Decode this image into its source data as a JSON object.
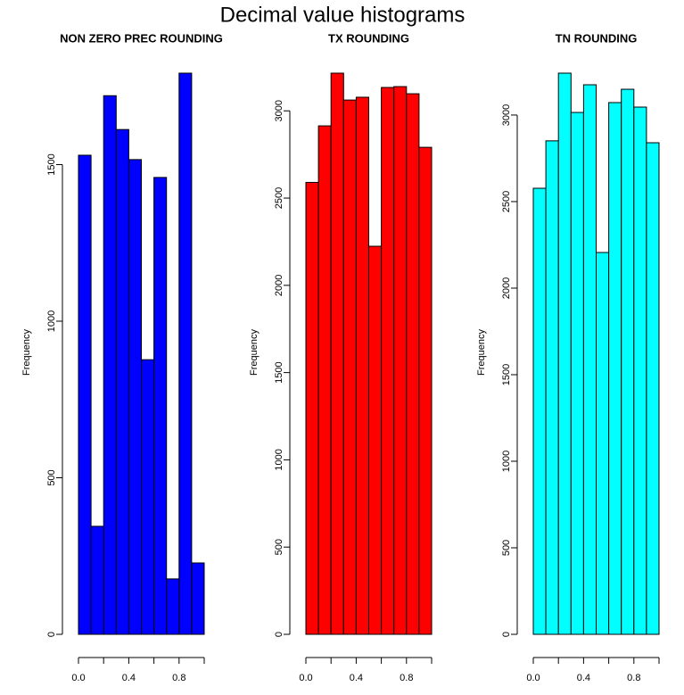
{
  "title": "Decimal value histograms",
  "chart_data": [
    {
      "type": "histogram",
      "title": "NON ZERO PREC ROUNDING",
      "ylabel": "Frequency",
      "color": "#0000ff",
      "bins": [
        0,
        0.1,
        0.2,
        0.3,
        0.4,
        0.5,
        0.6,
        0.7,
        0.8,
        0.9,
        1.0
      ],
      "values": [
        1530,
        345,
        1720,
        1612,
        1516,
        877,
        1459,
        177,
        1792,
        228
      ],
      "xlim": [
        0,
        1
      ],
      "ylim": [
        0,
        1792
      ],
      "xticks": [
        {
          "value": 0,
          "label": "0.0"
        },
        {
          "value": 0.2,
          "label": null
        },
        {
          "value": 0.4,
          "label": "0.4"
        },
        {
          "value": 0.6,
          "label": null
        },
        {
          "value": 0.8,
          "label": "0.8"
        },
        {
          "value": 1.0,
          "label": null
        }
      ],
      "yticks": [
        0,
        500,
        1000,
        1500
      ]
    },
    {
      "type": "histogram",
      "title": "TX ROUNDING",
      "ylabel": "Frequency",
      "color": "#ff0000",
      "bins": [
        0,
        0.1,
        0.2,
        0.3,
        0.4,
        0.5,
        0.6,
        0.7,
        0.8,
        0.9,
        1.0
      ],
      "values": [
        2590,
        2914,
        3216,
        3062,
        3078,
        2224,
        3134,
        3139,
        3098,
        2791
      ],
      "xlim": [
        0,
        1
      ],
      "ylim": [
        0,
        3216
      ],
      "xticks": [
        {
          "value": 0,
          "label": "0.0"
        },
        {
          "value": 0.2,
          "label": null
        },
        {
          "value": 0.4,
          "label": "0.4"
        },
        {
          "value": 0.6,
          "label": null
        },
        {
          "value": 0.8,
          "label": "0.8"
        },
        {
          "value": 1.0,
          "label": null
        }
      ],
      "yticks": [
        0,
        500,
        1000,
        1500,
        2000,
        2500,
        3000
      ]
    },
    {
      "type": "histogram",
      "title": "TN ROUNDING",
      "ylabel": "Frequency",
      "color": "#00ffff",
      "bins": [
        0,
        0.1,
        0.2,
        0.3,
        0.4,
        0.5,
        0.6,
        0.7,
        0.8,
        0.9,
        1.0
      ],
      "values": [
        2577,
        2851,
        3242,
        3015,
        3175,
        2206,
        3072,
        3149,
        3046,
        2840
      ],
      "xlim": [
        0,
        1
      ],
      "ylim": [
        0,
        3242
      ],
      "xticks": [
        {
          "value": 0,
          "label": "0.0"
        },
        {
          "value": 0.2,
          "label": null
        },
        {
          "value": 0.4,
          "label": "0.4"
        },
        {
          "value": 0.6,
          "label": null
        },
        {
          "value": 0.8,
          "label": "0.8"
        },
        {
          "value": 1.0,
          "label": null
        }
      ],
      "yticks": [
        0,
        500,
        1000,
        1500,
        2000,
        2500,
        3000
      ]
    }
  ]
}
